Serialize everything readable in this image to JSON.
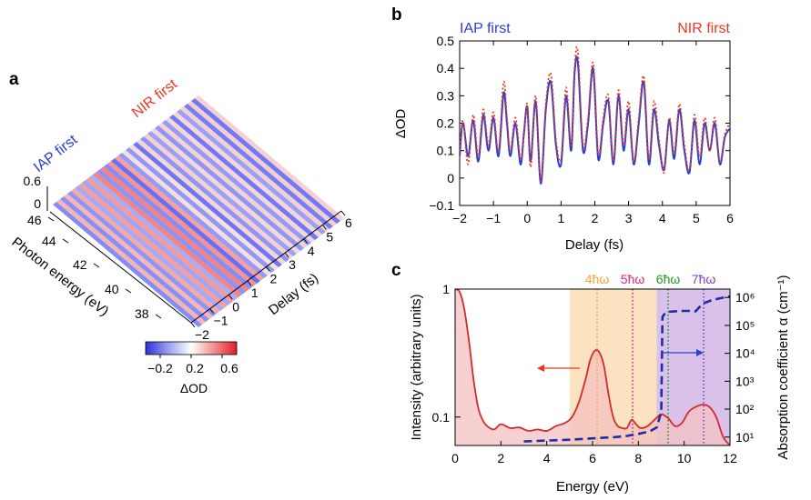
{
  "colors": {
    "blue": "#2b3fd0",
    "red": "#e8391e",
    "orange": "#f2a53b",
    "magenta": "#d6287a",
    "green": "#1e9a2a",
    "purple": "#8a3fbf"
  },
  "panel_a": {
    "label": "a",
    "iap_label": "IAP first",
    "nir_label": "NIR first",
    "z_ticks": [
      "0.6",
      "0"
    ],
    "energy_ticks": [
      "46",
      "44",
      "42",
      "40",
      "38"
    ],
    "energy_label": "Photon energy (eV)",
    "delay_ticks": [
      "−2",
      "−1",
      "0",
      "1",
      "2",
      "3",
      "4",
      "5",
      "6"
    ],
    "delay_label": "Delay (fs)",
    "colorbar_ticks": [
      "−0.2",
      "0.2",
      "0.6"
    ],
    "colorbar_label": "ΔOD"
  },
  "panel_b": {
    "label": "b",
    "iap_label": "IAP first",
    "nir_label": "NIR first"
  },
  "panel_c": {
    "label": "c",
    "harmonics": [
      "4ħω",
      "5ħω",
      "6ħω",
      "7ħω"
    ]
  },
  "chart_data": [
    {
      "type": "line",
      "panel": "b",
      "xlabel": "Delay (fs)",
      "ylabel": "ΔOD",
      "xlim": [
        -2,
        6
      ],
      "ylim": [
        -0.1,
        0.5
      ],
      "xticks": [
        -2,
        -1,
        0,
        1,
        2,
        3,
        4,
        5,
        6
      ],
      "yticks": [
        -0.1,
        0,
        0.1,
        0.2,
        0.3,
        0.4,
        0.5
      ],
      "xtick_labels": [
        "−2",
        "−1",
        "0",
        "1",
        "2",
        "3",
        "4",
        "5",
        "6"
      ],
      "ytick_labels": [
        "−0.1",
        "0",
        "0.1",
        "0.2",
        "0.3",
        "0.4",
        "0.5"
      ],
      "series": [
        {
          "name": "IAP first",
          "style": "solid",
          "color": "#2b3fd0",
          "x": [
            -2,
            -1.9,
            -1.75,
            -1.6,
            -1.45,
            -1.3,
            -1.15,
            -1,
            -0.85,
            -0.7,
            -0.6,
            -0.5,
            -0.35,
            -0.2,
            -0.1,
            0,
            0.1,
            0.25,
            0.4,
            0.55,
            0.7,
            0.85,
            1,
            1.15,
            1.3,
            1.4,
            1.5,
            1.65,
            1.8,
            1.95,
            2.1,
            2.25,
            2.4,
            2.55,
            2.7,
            2.85,
            3,
            3.15,
            3.3,
            3.45,
            3.6,
            3.75,
            3.9,
            4.05,
            4.2,
            4.35,
            4.5,
            4.65,
            4.8,
            4.95,
            5.1,
            5.25,
            5.4,
            5.55,
            5.7,
            5.85,
            6
          ],
          "y": [
            0.08,
            0.2,
            0.08,
            0.21,
            0.06,
            0.23,
            0.1,
            0.22,
            0.08,
            0.31,
            0.2,
            0.08,
            0.2,
            0.05,
            0.16,
            0.26,
            0.06,
            0.28,
            -0.02,
            0.25,
            0.35,
            0.12,
            0.05,
            0.3,
            0.1,
            0.38,
            0.42,
            0.1,
            0.2,
            0.4,
            0.07,
            0.2,
            0.28,
            0.05,
            0.3,
            0.1,
            0.25,
            0.05,
            0.2,
            0.35,
            0.05,
            0.25,
            0.12,
            0.03,
            0.21,
            0.07,
            0.25,
            0.1,
            0.02,
            0.21,
            0.05,
            0.2,
            0.1,
            0.2,
            0.05,
            0.15,
            0.18
          ]
        },
        {
          "name": "NIR first",
          "style": "dotted",
          "color": "#e8391e",
          "x": [
            -2,
            -1.9,
            -1.75,
            -1.6,
            -1.45,
            -1.3,
            -1.15,
            -1,
            -0.85,
            -0.7,
            -0.6,
            -0.5,
            -0.35,
            -0.2,
            -0.1,
            0,
            0.1,
            0.25,
            0.4,
            0.55,
            0.7,
            0.85,
            1,
            1.15,
            1.3,
            1.4,
            1.5,
            1.65,
            1.8,
            1.95,
            2.1,
            2.25,
            2.4,
            2.55,
            2.7,
            2.85,
            3,
            3.15,
            3.3,
            3.45,
            3.6,
            3.75,
            3.9,
            4.05,
            4.2,
            4.35,
            4.5,
            4.65,
            4.8,
            4.95,
            5.1,
            5.25,
            5.4,
            5.55,
            5.7,
            5.85,
            6
          ],
          "y": [
            0.1,
            0.21,
            0.05,
            0.23,
            0.08,
            0.25,
            0.12,
            0.24,
            0.1,
            0.35,
            0.22,
            0.1,
            0.22,
            0.07,
            0.15,
            0.27,
            0.04,
            0.3,
            -0.01,
            0.27,
            0.38,
            0.14,
            0.07,
            0.33,
            0.12,
            0.4,
            0.46,
            0.12,
            0.22,
            0.42,
            0.09,
            0.22,
            0.3,
            0.06,
            0.32,
            0.12,
            0.28,
            0.06,
            0.22,
            0.37,
            0.07,
            0.28,
            0.14,
            0.02,
            0.22,
            0.09,
            0.27,
            0.12,
            0.03,
            0.23,
            0.08,
            0.22,
            0.1,
            0.22,
            0.06,
            0.16,
            0.2
          ]
        }
      ]
    },
    {
      "type": "line",
      "panel": "c",
      "xlabel": "Energy (eV)",
      "ylabel_left": "Intensity (arbitrary units)",
      "ylabel_right": "Absorption coefficient α (cm⁻¹)",
      "xlim": [
        0,
        12
      ],
      "ylim_left": [
        0.06,
        1
      ],
      "ylim_right": [
        5,
        2000000
      ],
      "yscale": "log",
      "xticks": [
        0,
        2,
        4,
        6,
        8,
        10,
        12
      ],
      "left_ticks": [
        {
          "value": 1,
          "label": "1"
        },
        {
          "value": 0.1,
          "label": "0.1"
        }
      ],
      "right_ticks": [
        {
          "value": 10,
          "label": "10¹"
        },
        {
          "value": 100,
          "label": "10²"
        },
        {
          "value": 1000,
          "label": "10³"
        },
        {
          "value": 10000,
          "label": "10⁴"
        },
        {
          "value": 100000,
          "label": "10⁵"
        },
        {
          "value": 1000000,
          "label": "10⁶"
        }
      ],
      "bands": [
        {
          "x0": 5,
          "x1": 8.8,
          "color": "#f2a53b",
          "harmonic": "4ħω",
          "center": 6.2
        },
        {
          "x0": 8.8,
          "x1": 12,
          "color": "#8a3fbf",
          "harmonic": "7ħω",
          "center": 10.85
        }
      ],
      "harmonic_lines": [
        {
          "x": 6.2,
          "color": "#f2a53b",
          "label": "4ħω"
        },
        {
          "x": 7.75,
          "color": "#d6287a",
          "label": "5ħω"
        },
        {
          "x": 9.3,
          "color": "#1e9a2a",
          "label": "6ħω"
        },
        {
          "x": 10.85,
          "color": "#8a3fbf",
          "label": "7ħω"
        }
      ],
      "series": [
        {
          "name": "",
          "axis": "left",
          "style": "solid",
          "color": "#d42a2a",
          "x": [
            0,
            0.2,
            0.4,
            0.6,
            0.8,
            1,
            1.2,
            1.4,
            1.7,
            2,
            2.4,
            2.8,
            3.2,
            3.6,
            4,
            4.4,
            4.8,
            5.1,
            5.4,
            5.7,
            5.9,
            6.1,
            6.3,
            6.5,
            6.7,
            6.9,
            7.1,
            7.3,
            7.5,
            7.7,
            7.9,
            8.1,
            8.4,
            8.7,
            9,
            9.3,
            9.6,
            9.9,
            10.2,
            10.5,
            10.8,
            11.1,
            11.4,
            11.7,
            12
          ],
          "y": [
            1,
            0.95,
            0.7,
            0.4,
            0.2,
            0.12,
            0.095,
            0.085,
            0.08,
            0.088,
            0.082,
            0.083,
            0.078,
            0.08,
            0.078,
            0.085,
            0.09,
            0.1,
            0.13,
            0.2,
            0.28,
            0.33,
            0.32,
            0.25,
            0.15,
            0.1,
            0.085,
            0.082,
            0.082,
            0.095,
            0.088,
            0.082,
            0.085,
            0.095,
            0.105,
            0.098,
            0.085,
            0.09,
            0.11,
            0.12,
            0.125,
            0.12,
            0.1,
            0.07,
            0.06
          ]
        },
        {
          "name": "",
          "axis": "right",
          "style": "dashed",
          "color": "#1f2ea0",
          "x": [
            3,
            4,
            5,
            6,
            7,
            7.5,
            8,
            8.5,
            8.8,
            9,
            9.05,
            9.2,
            9.6,
            10,
            10.3,
            10.5,
            10.8,
            11.2,
            11.6,
            12
          ],
          "y": [
            7,
            7.5,
            8,
            9,
            10,
            11,
            13,
            16,
            22,
            80,
            200000,
            300000,
            320000,
            330000,
            330000,
            320000,
            600000,
            800000,
            950000,
            1100000
          ]
        }
      ]
    }
  ]
}
